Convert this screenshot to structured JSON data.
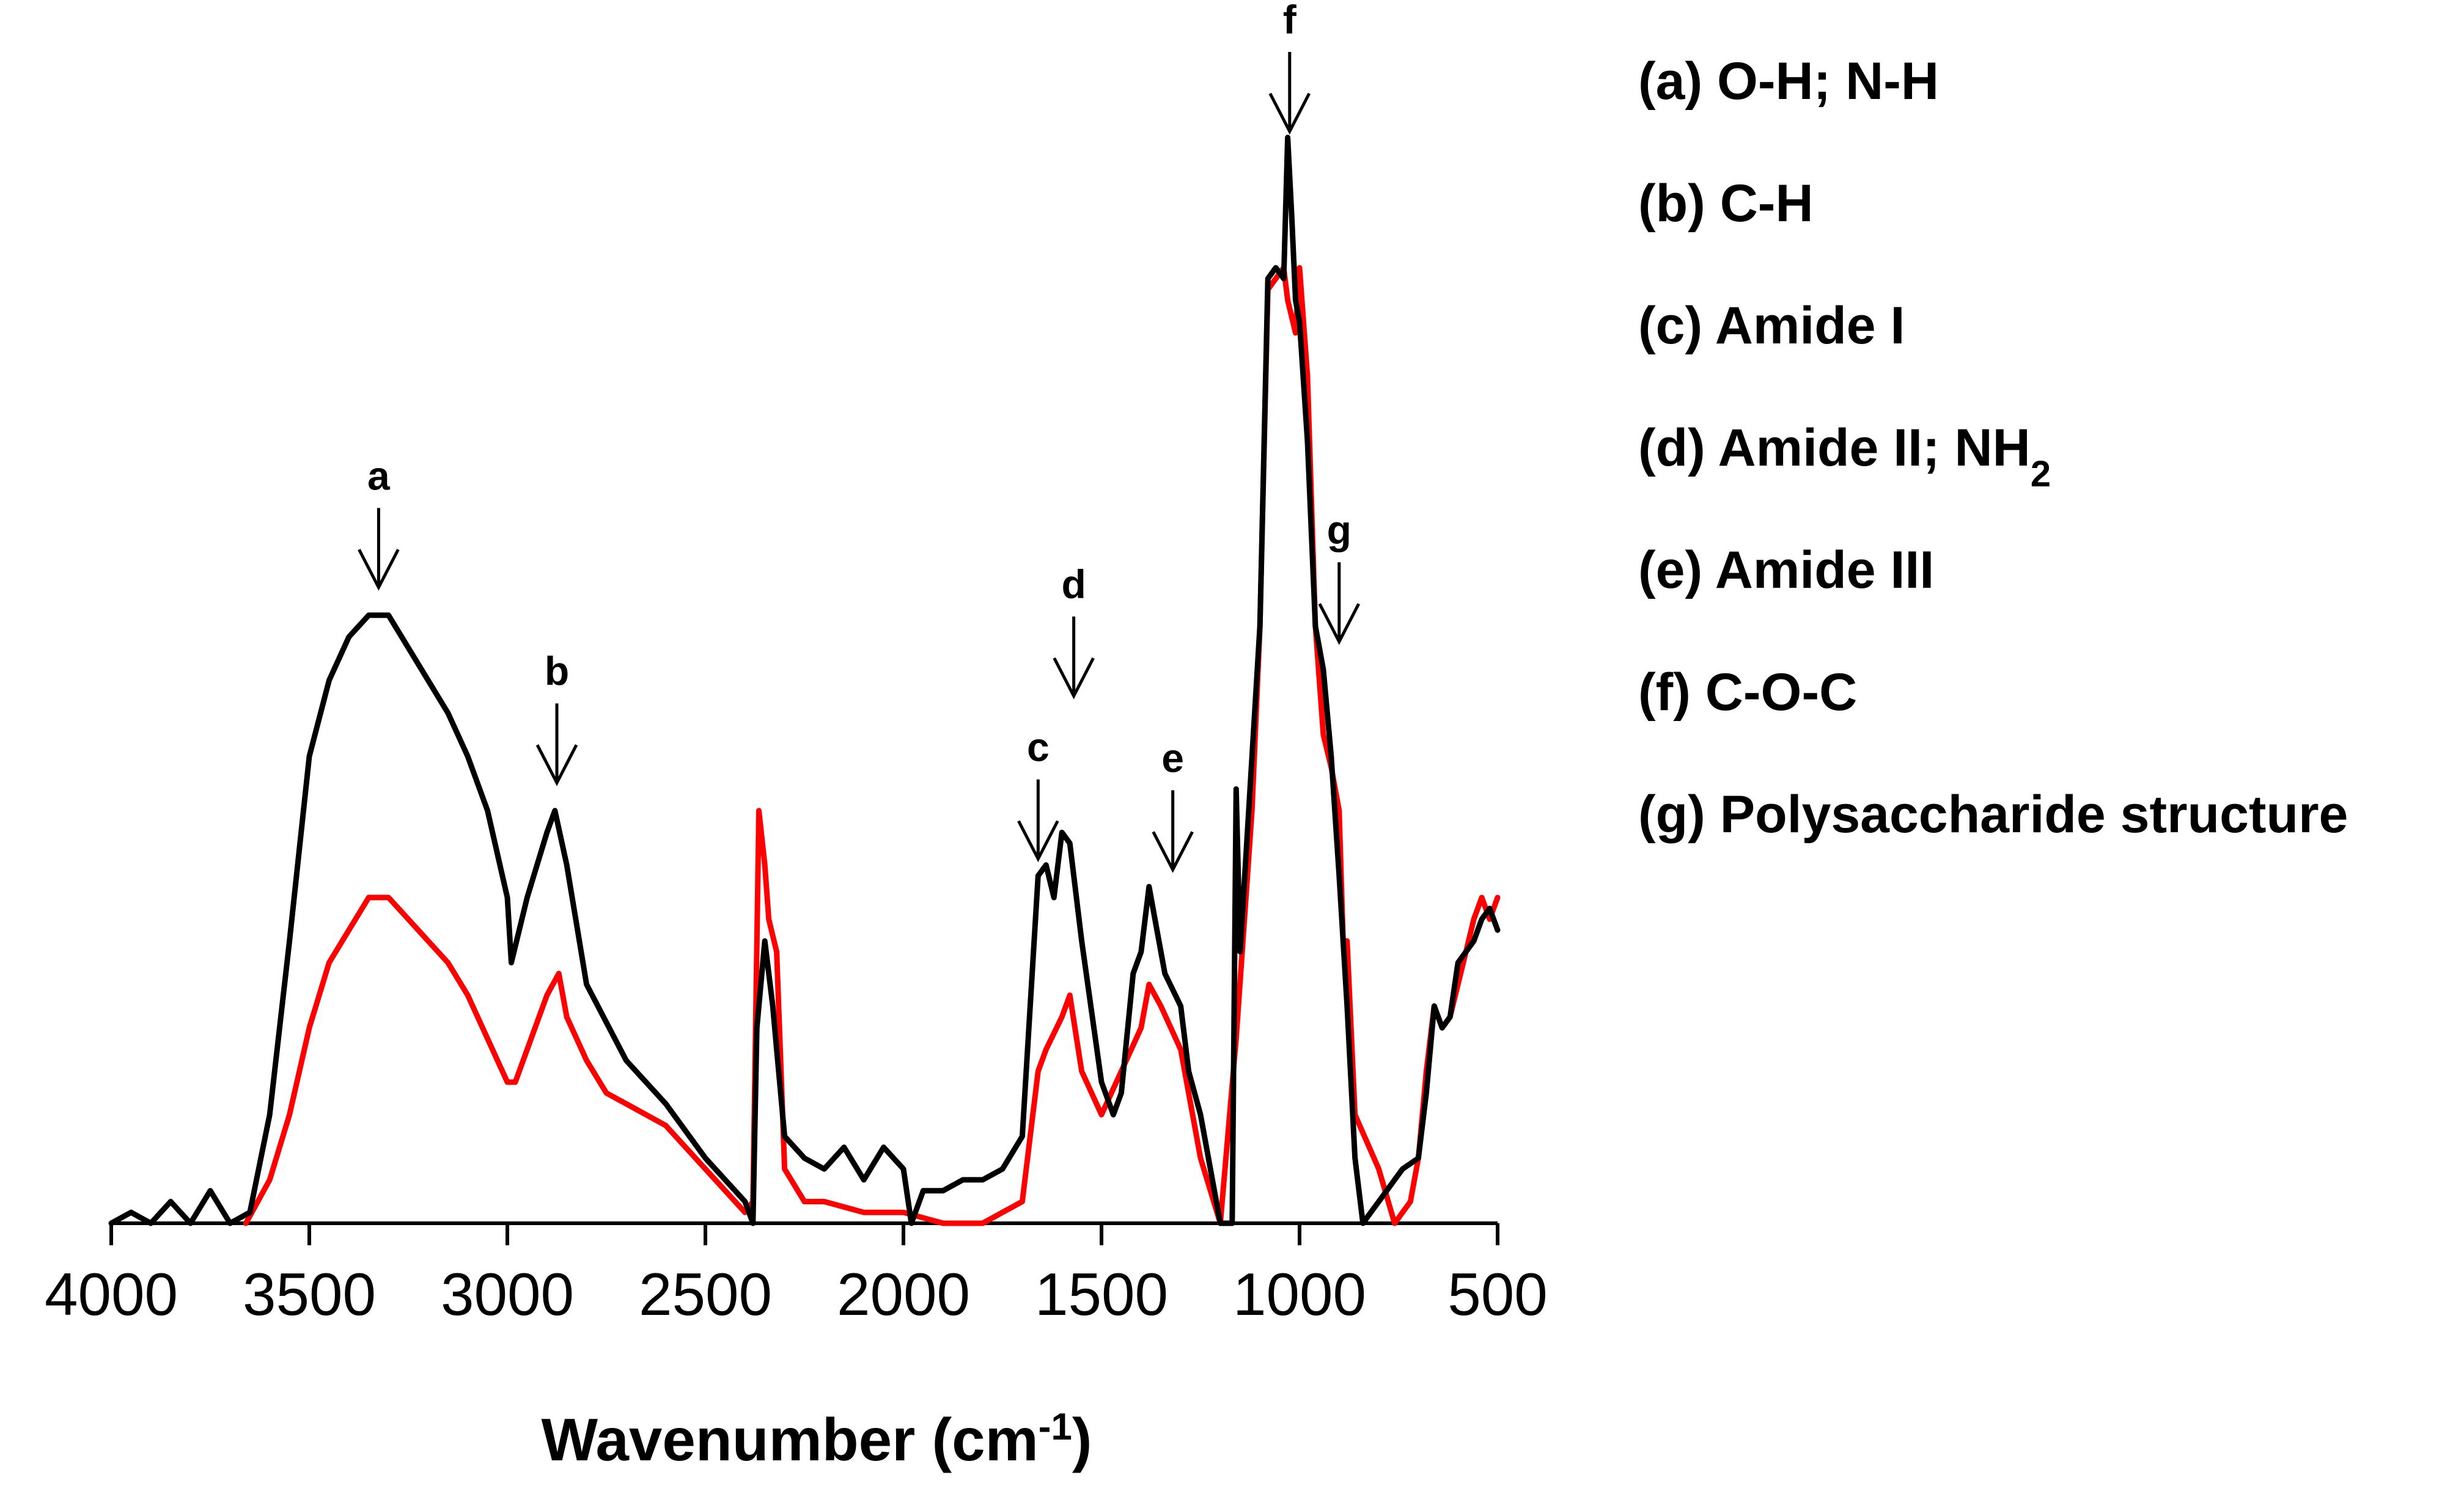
{
  "chart_data": {
    "type": "line",
    "title": "",
    "xlabel": {
      "text": "Wavenumber (cm",
      "superscript": "-1",
      "suffix": ")"
    },
    "ylabel": "",
    "xlim": [
      4000,
      500
    ],
    "ylim": [
      0,
      1.0
    ],
    "x_direction": "reversed",
    "grid": false,
    "x_ticks": [
      4000,
      3500,
      3000,
      2500,
      2000,
      1500,
      1000,
      500
    ],
    "x_tick_labels": [
      "4000",
      "3500",
      "3000",
      "2500",
      "2000",
      "1500",
      "1000",
      "500"
    ],
    "colors": {
      "black_series": "#000000",
      "red_series": "#ff0000",
      "axis": "#000000"
    },
    "series": [
      {
        "name": "black spectrum",
        "color": "#000000",
        "points": [
          [
            4000,
            0.0
          ],
          [
            3950,
            0.01
          ],
          [
            3900,
            0.0
          ],
          [
            3850,
            0.02
          ],
          [
            3800,
            0.0
          ],
          [
            3750,
            0.03
          ],
          [
            3700,
            0.0
          ],
          [
            3650,
            0.01
          ],
          [
            3600,
            0.1
          ],
          [
            3550,
            0.26
          ],
          [
            3500,
            0.43
          ],
          [
            3450,
            0.5
          ],
          [
            3400,
            0.54
          ],
          [
            3350,
            0.56
          ],
          [
            3300,
            0.56
          ],
          [
            3250,
            0.53
          ],
          [
            3200,
            0.5
          ],
          [
            3150,
            0.47
          ],
          [
            3100,
            0.43
          ],
          [
            3050,
            0.38
          ],
          [
            3000,
            0.3
          ],
          [
            2990,
            0.24
          ],
          [
            2950,
            0.3
          ],
          [
            2900,
            0.36
          ],
          [
            2880,
            0.38
          ],
          [
            2850,
            0.33
          ],
          [
            2800,
            0.22
          ],
          [
            2700,
            0.15
          ],
          [
            2600,
            0.11
          ],
          [
            2500,
            0.06
          ],
          [
            2400,
            0.02
          ],
          [
            2380,
            0.0
          ],
          [
            2370,
            0.18
          ],
          [
            2350,
            0.26
          ],
          [
            2330,
            0.2
          ],
          [
            2320,
            0.16
          ],
          [
            2300,
            0.08
          ],
          [
            2250,
            0.06
          ],
          [
            2200,
            0.05
          ],
          [
            2150,
            0.07
          ],
          [
            2100,
            0.04
          ],
          [
            2050,
            0.07
          ],
          [
            2000,
            0.05
          ],
          [
            1980,
            0.0
          ],
          [
            1950,
            0.03
          ],
          [
            1900,
            0.03
          ],
          [
            1850,
            0.04
          ],
          [
            1800,
            0.04
          ],
          [
            1750,
            0.05
          ],
          [
            1700,
            0.08
          ],
          [
            1660,
            0.32
          ],
          [
            1640,
            0.33
          ],
          [
            1620,
            0.3
          ],
          [
            1600,
            0.36
          ],
          [
            1580,
            0.35
          ],
          [
            1550,
            0.26
          ],
          [
            1500,
            0.13
          ],
          [
            1470,
            0.1
          ],
          [
            1450,
            0.12
          ],
          [
            1420,
            0.23
          ],
          [
            1400,
            0.25
          ],
          [
            1380,
            0.31
          ],
          [
            1360,
            0.27
          ],
          [
            1340,
            0.23
          ],
          [
            1300,
            0.2
          ],
          [
            1280,
            0.14
          ],
          [
            1250,
            0.1
          ],
          [
            1200,
            0.0
          ],
          [
            1170,
            0.0
          ],
          [
            1160,
            0.4
          ],
          [
            1150,
            0.25
          ],
          [
            1100,
            0.55
          ],
          [
            1080,
            0.87
          ],
          [
            1060,
            0.88
          ],
          [
            1040,
            0.87
          ],
          [
            1030,
            1.0
          ],
          [
            1020,
            0.93
          ],
          [
            1010,
            0.85
          ],
          [
            1000,
            0.83
          ],
          [
            980,
            0.72
          ],
          [
            960,
            0.55
          ],
          [
            940,
            0.51
          ],
          [
            920,
            0.43
          ],
          [
            900,
            0.32
          ],
          [
            880,
            0.2
          ],
          [
            860,
            0.06
          ],
          [
            840,
            0.0
          ],
          [
            820,
            0.01
          ],
          [
            800,
            0.02
          ],
          [
            780,
            0.03
          ],
          [
            760,
            0.04
          ],
          [
            740,
            0.05
          ],
          [
            700,
            0.06
          ],
          [
            680,
            0.12
          ],
          [
            660,
            0.2
          ],
          [
            640,
            0.18
          ],
          [
            620,
            0.19
          ],
          [
            600,
            0.24
          ],
          [
            580,
            0.25
          ],
          [
            560,
            0.26
          ],
          [
            540,
            0.28
          ],
          [
            520,
            0.29
          ],
          [
            500,
            0.27
          ]
        ]
      },
      {
        "name": "red spectrum",
        "color": "#ff0000",
        "points": [
          [
            3660,
            0.0
          ],
          [
            3600,
            0.04
          ],
          [
            3550,
            0.1
          ],
          [
            3500,
            0.18
          ],
          [
            3450,
            0.24
          ],
          [
            3400,
            0.27
          ],
          [
            3350,
            0.3
          ],
          [
            3300,
            0.3
          ],
          [
            3250,
            0.28
          ],
          [
            3200,
            0.26
          ],
          [
            3150,
            0.24
          ],
          [
            3100,
            0.21
          ],
          [
            3050,
            0.17
          ],
          [
            3000,
            0.13
          ],
          [
            2980,
            0.13
          ],
          [
            2950,
            0.16
          ],
          [
            2900,
            0.21
          ],
          [
            2870,
            0.23
          ],
          [
            2850,
            0.19
          ],
          [
            2800,
            0.15
          ],
          [
            2750,
            0.12
          ],
          [
            2700,
            0.11
          ],
          [
            2600,
            0.09
          ],
          [
            2500,
            0.05
          ],
          [
            2400,
            0.01
          ],
          [
            2380,
            0.02
          ],
          [
            2365,
            0.38
          ],
          [
            2350,
            0.33
          ],
          [
            2340,
            0.28
          ],
          [
            2320,
            0.25
          ],
          [
            2300,
            0.05
          ],
          [
            2250,
            0.02
          ],
          [
            2200,
            0.02
          ],
          [
            2100,
            0.01
          ],
          [
            2000,
            0.01
          ],
          [
            1900,
            0.0
          ],
          [
            1800,
            0.0
          ],
          [
            1700,
            0.02
          ],
          [
            1660,
            0.14
          ],
          [
            1640,
            0.16
          ],
          [
            1600,
            0.19
          ],
          [
            1580,
            0.21
          ],
          [
            1550,
            0.14
          ],
          [
            1500,
            0.1
          ],
          [
            1450,
            0.14
          ],
          [
            1400,
            0.18
          ],
          [
            1380,
            0.22
          ],
          [
            1350,
            0.2
          ],
          [
            1300,
            0.16
          ],
          [
            1250,
            0.06
          ],
          [
            1200,
            0.0
          ],
          [
            1160,
            0.17
          ],
          [
            1120,
            0.38
          ],
          [
            1100,
            0.55
          ],
          [
            1080,
            0.86
          ],
          [
            1060,
            0.87
          ],
          [
            1040,
            0.88
          ],
          [
            1030,
            0.85
          ],
          [
            1010,
            0.82
          ],
          [
            1000,
            0.88
          ],
          [
            980,
            0.78
          ],
          [
            960,
            0.55
          ],
          [
            940,
            0.45
          ],
          [
            920,
            0.42
          ],
          [
            900,
            0.38
          ],
          [
            890,
            0.26
          ],
          [
            880,
            0.26
          ],
          [
            860,
            0.1
          ],
          [
            800,
            0.05
          ],
          [
            760,
            0.0
          ],
          [
            720,
            0.02
          ],
          [
            700,
            0.06
          ],
          [
            680,
            0.14
          ],
          [
            660,
            0.2
          ],
          [
            640,
            0.18
          ],
          [
            620,
            0.19
          ],
          [
            600,
            0.22
          ],
          [
            580,
            0.25
          ],
          [
            560,
            0.28
          ],
          [
            540,
            0.3
          ],
          [
            520,
            0.28
          ],
          [
            500,
            0.3
          ]
        ]
      }
    ],
    "annotations": [
      {
        "letter": "a",
        "x": 3325,
        "y_arrow_tip": 0.58
      },
      {
        "letter": "b",
        "x": 2875,
        "y_arrow_tip": 0.4
      },
      {
        "letter": "c",
        "x": 1660,
        "y_arrow_tip": 0.33
      },
      {
        "letter": "d",
        "x": 1570,
        "y_arrow_tip": 0.48
      },
      {
        "letter": "e",
        "x": 1320,
        "y_arrow_tip": 0.32
      },
      {
        "letter": "f",
        "x": 1025,
        "y_arrow_tip": 1.0
      },
      {
        "letter": "g",
        "x": 900,
        "y_arrow_tip": 0.53
      }
    ],
    "legend": [
      {
        "plain": "(a) O-H; N-H"
      },
      {
        "plain": "(b) C-H"
      },
      {
        "plain": "(c) Amide I"
      },
      {
        "plain": "(d) Amide II; NH",
        "subscript": "2"
      },
      {
        "plain": "(e) Amide III"
      },
      {
        "plain": "(f) C-O-C"
      },
      {
        "plain": "(g) Polysaccharide structure"
      }
    ],
    "legend_position": "top-right"
  }
}
